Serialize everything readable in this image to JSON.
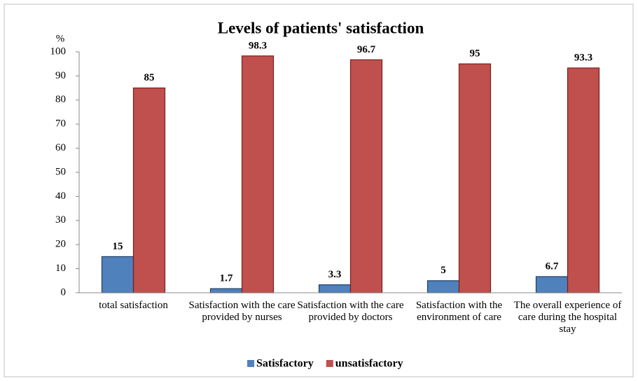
{
  "chart_data": {
    "type": "bar",
    "title": "Levels of patients' satisfaction",
    "y_label": "%",
    "categories": [
      "total satisfaction",
      "Satisfaction with the care provided by nurses",
      "Satisfaction with the care provided by doctors",
      "Satisfaction with the environment of care",
      "The overall experience of care during the hospital stay"
    ],
    "series": [
      {
        "name": "Satisfactory",
        "color": "#4f81bd",
        "values": [
          15,
          1.7,
          3.3,
          5,
          6.7
        ]
      },
      {
        "name": "unsatisfactory",
        "color": "#c0504d",
        "values": [
          85,
          98.3,
          96.7,
          95,
          93.3
        ]
      }
    ],
    "ylim": [
      0,
      100
    ],
    "yticks": [
      0,
      10,
      20,
      30,
      40,
      50,
      60,
      70,
      80,
      90,
      100
    ],
    "grid": false,
    "legend": "bottom"
  }
}
